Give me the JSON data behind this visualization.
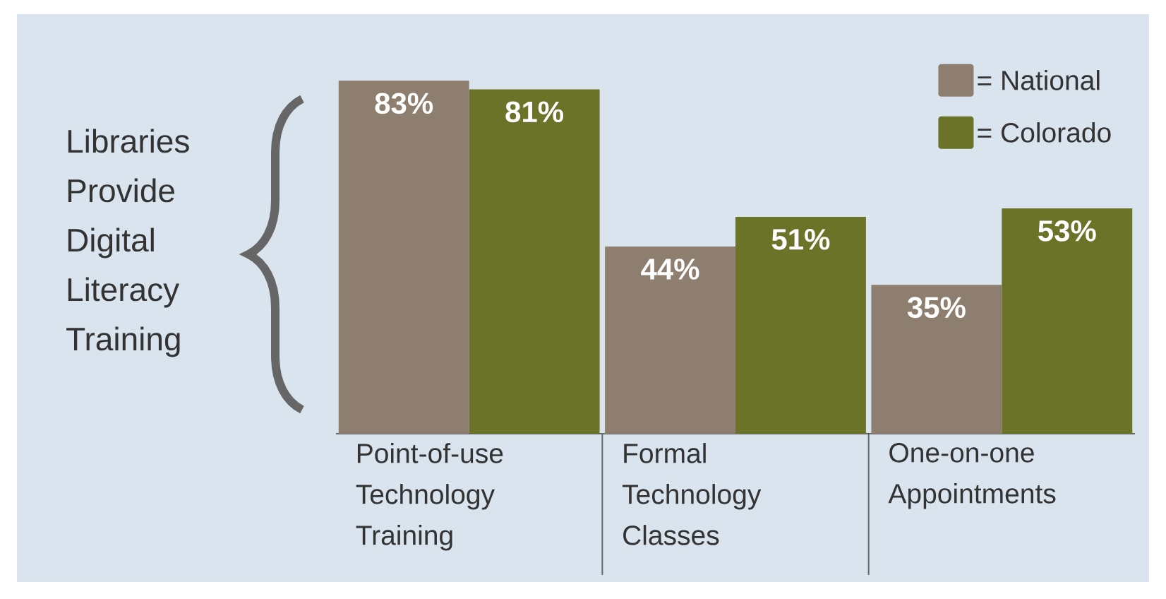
{
  "chart_data": {
    "type": "bar",
    "title": "Libraries Provide Digital Literacy Training",
    "categories": [
      "Point-of-use Technology Training",
      "Formal Technology Classes",
      "One-on-one Appointments"
    ],
    "series": [
      {
        "name": "= National",
        "color": "#8e7e6f",
        "values": [
          83,
          44,
          35
        ],
        "value_labels": [
          "83%",
          "44%",
          "35%"
        ]
      },
      {
        "name": "= Colorado",
        "color": "#6b7329",
        "values": [
          81,
          51,
          53
        ],
        "value_labels": [
          "81%",
          "51%",
          "53%"
        ]
      }
    ],
    "legend": "top right"
  }
}
